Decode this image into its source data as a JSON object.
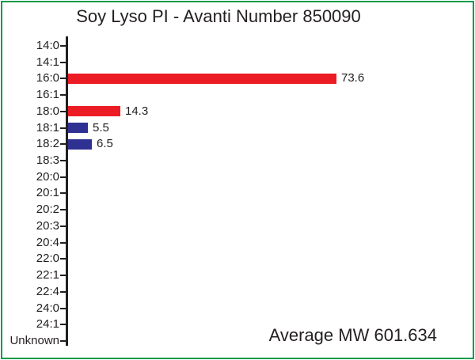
{
  "title": "Soy Lyso PI - Avanti Number 850090",
  "footer": {
    "annotation": "Average MW 601.634"
  },
  "colors": {
    "frame_green": "#0A9A4A",
    "bar_red": "#EC1C24",
    "bar_blue": "#2E3192",
    "axis": "#231F20",
    "text": "#231F20",
    "background": "#FFFFFF"
  },
  "chart_data": {
    "type": "bar",
    "orientation": "horizontal",
    "title": "Soy Lyso PI - Avanti Number 850090",
    "categories": [
      "14:0",
      "14:1",
      "16:0",
      "16:1",
      "18:0",
      "18:1",
      "18:2",
      "18:3",
      "20:0",
      "20:1",
      "20:2",
      "20:3",
      "20:4",
      "22:0",
      "22:1",
      "22:4",
      "24:0",
      "24:1",
      "Unknown"
    ],
    "values": [
      0,
      0,
      73.6,
      0,
      14.3,
      5.5,
      6.5,
      0,
      0,
      0,
      0,
      0,
      0,
      0,
      0,
      0,
      0,
      0,
      0
    ],
    "bars": [
      {
        "category": "16:0",
        "value": 73.6,
        "label": "73.6",
        "color": "#EC1C24"
      },
      {
        "category": "18:0",
        "value": 14.3,
        "label": "14.3",
        "color": "#EC1C24"
      },
      {
        "category": "18:1",
        "value": 5.5,
        "label": "5.5",
        "color": "#2E3192"
      },
      {
        "category": "18:2",
        "value": 6.5,
        "label": "6.5",
        "color": "#2E3192"
      }
    ],
    "annotation": "Average MW 601.634",
    "xlabel": "",
    "ylabel": "",
    "xlim": [
      0,
      110
    ],
    "grid": false,
    "legend": false,
    "data_labels": true
  }
}
